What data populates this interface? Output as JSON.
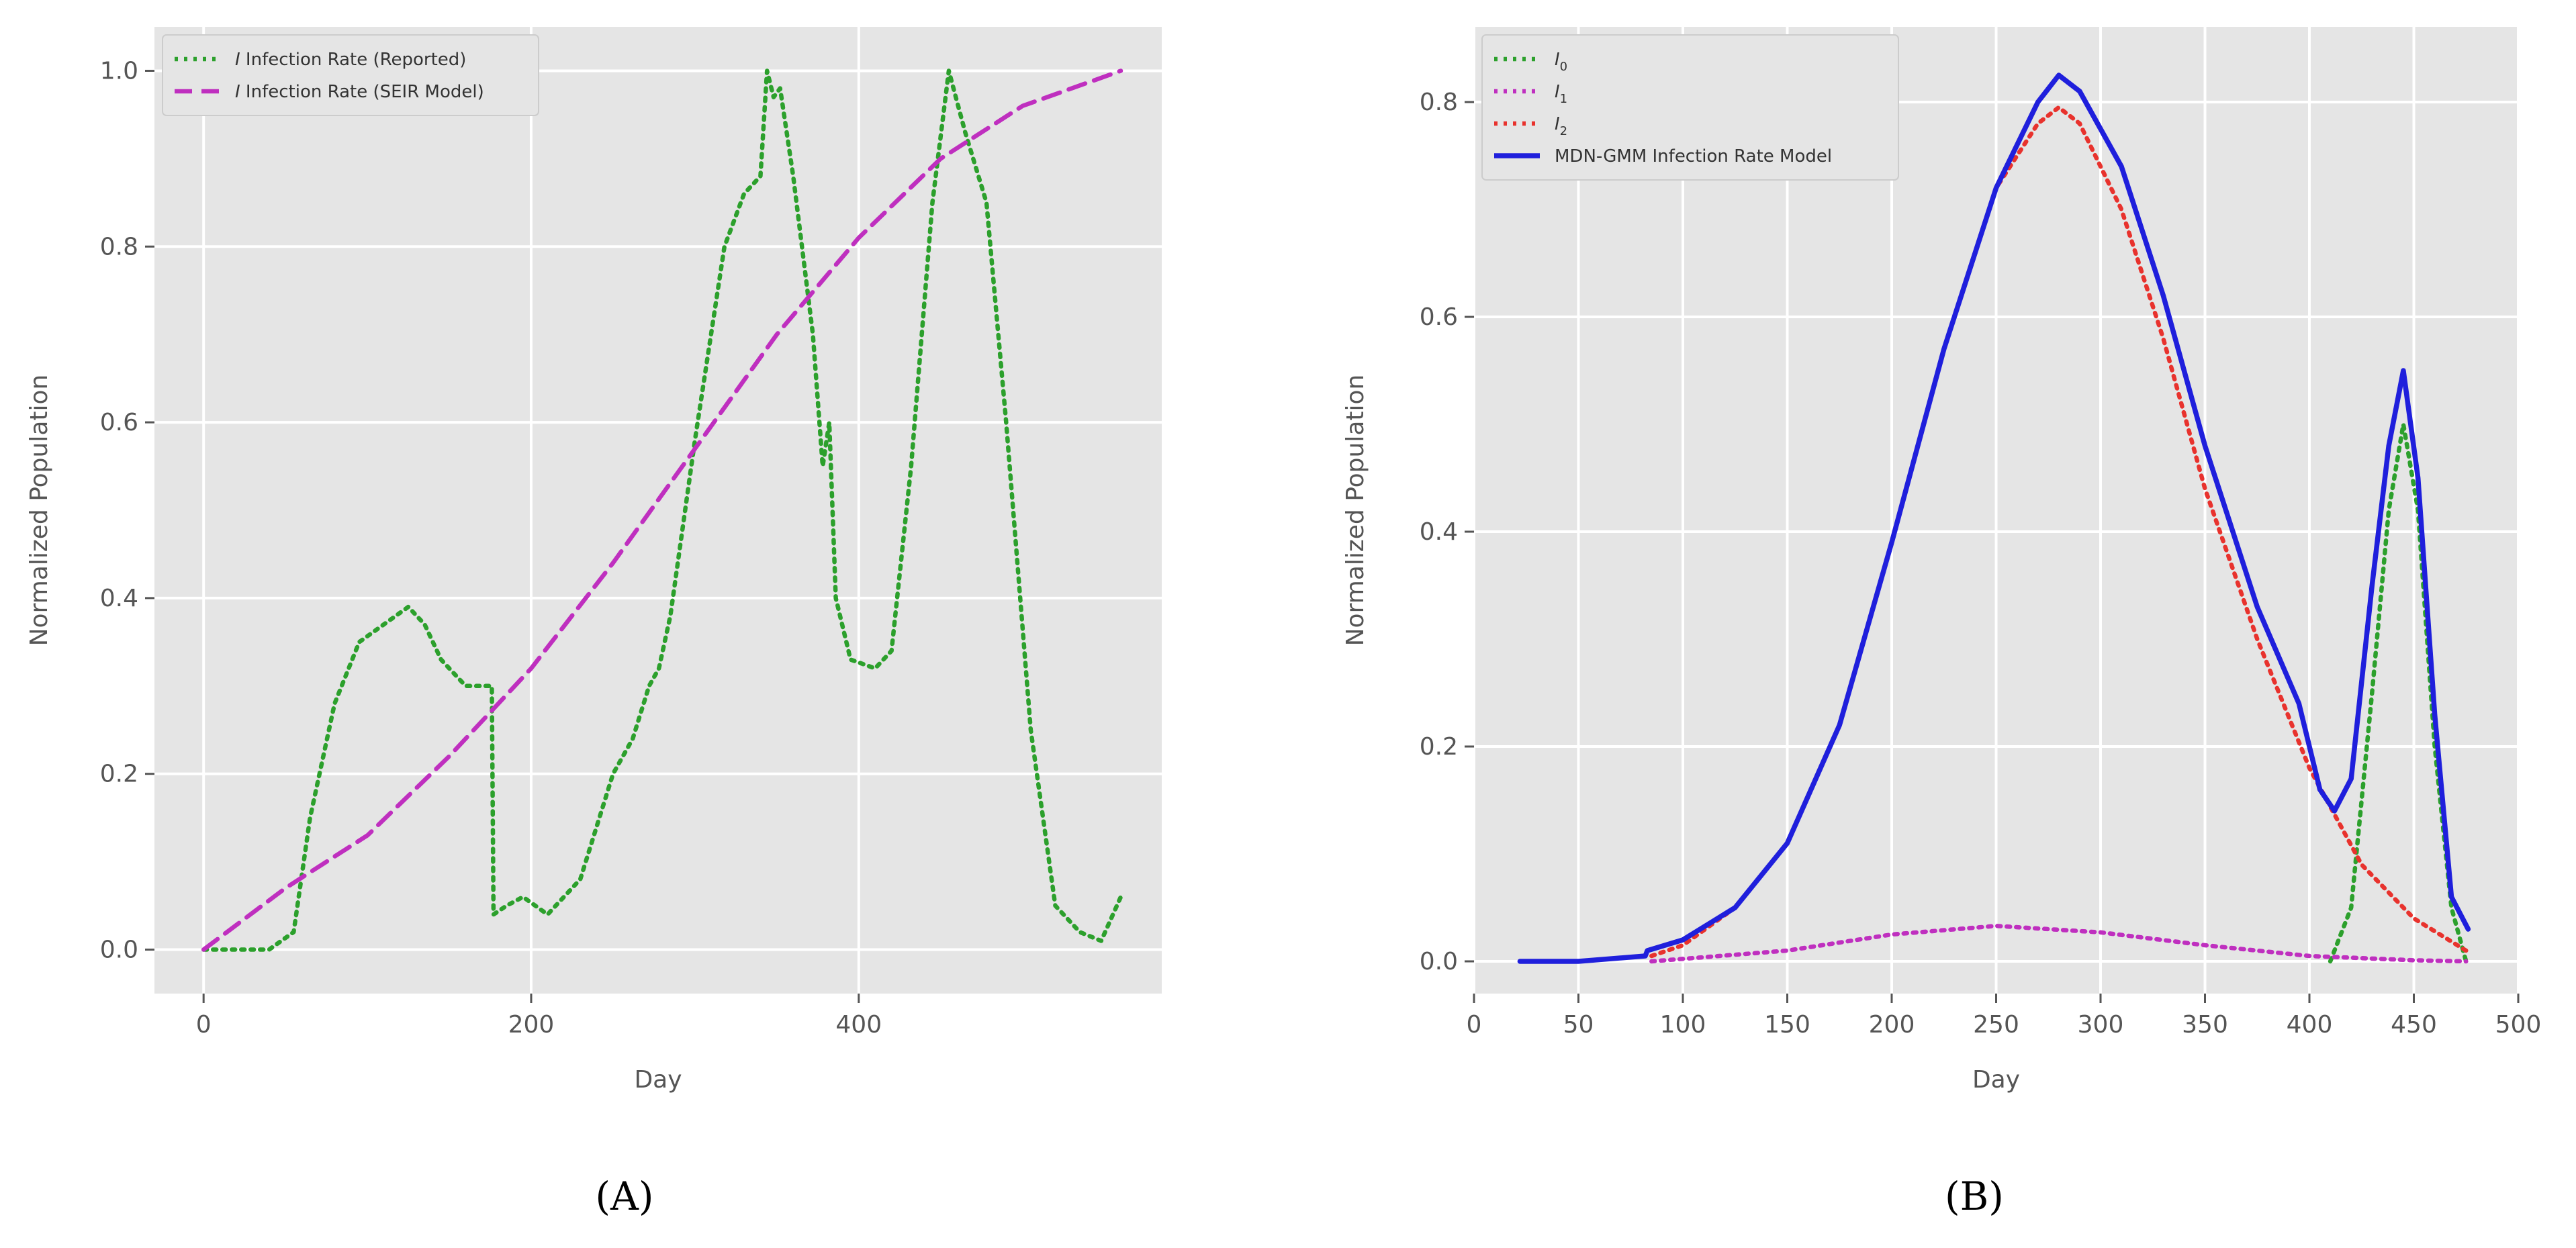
{
  "chart_data": [
    {
      "type": "line",
      "panel_label": "(A)",
      "xlabel": "Day",
      "ylabel": "Normalized Population",
      "xlim": [
        -30,
        585
      ],
      "ylim": [
        -0.05,
        1.05
      ],
      "xticks": [
        "0",
        "200",
        "400"
      ],
      "xtick_values": [
        0,
        200,
        400
      ],
      "yticks": [
        "0.0",
        "0.2",
        "0.4",
        "0.6",
        "0.8",
        "1.0"
      ],
      "ytick_values": [
        0.0,
        0.2,
        0.4,
        0.6,
        0.8,
        1.0
      ],
      "grid": true,
      "legend_position": "top-left",
      "series": [
        {
          "name": "I Infection Rate (Reported)",
          "legend_italic": "I",
          "legend_rest": " Infection Rate (Reported)",
          "color": "#2ca02c",
          "style": "dotted",
          "x": [
            0,
            20,
            40,
            55,
            65,
            80,
            95,
            110,
            125,
            135,
            145,
            160,
            176,
            177,
            185,
            195,
            210,
            230,
            250,
            262,
            272,
            278,
            285,
            300,
            318,
            330,
            340,
            344,
            348,
            352,
            360,
            372,
            378,
            382,
            386,
            395,
            410,
            420,
            432,
            445,
            455,
            465,
            478,
            490,
            505,
            520,
            535,
            548,
            560
          ],
          "y": [
            0.0,
            0.0,
            0.0,
            0.02,
            0.15,
            0.28,
            0.35,
            0.37,
            0.39,
            0.37,
            0.33,
            0.3,
            0.3,
            0.04,
            0.05,
            0.06,
            0.04,
            0.08,
            0.2,
            0.24,
            0.3,
            0.32,
            0.38,
            0.58,
            0.8,
            0.86,
            0.88,
            1.0,
            0.97,
            0.98,
            0.88,
            0.7,
            0.55,
            0.6,
            0.4,
            0.33,
            0.32,
            0.34,
            0.55,
            0.85,
            1.0,
            0.93,
            0.85,
            0.6,
            0.25,
            0.05,
            0.02,
            0.01,
            0.06
          ]
        },
        {
          "name": "I Infection Rate (SEIR Model)",
          "legend_italic": "I",
          "legend_rest": " Infection Rate (SEIR Model)",
          "color": "#bf2fbf",
          "style": "dashed",
          "x": [
            0,
            50,
            100,
            150,
            200,
            250,
            300,
            350,
            400,
            450,
            500,
            560
          ],
          "y": [
            0.0,
            0.07,
            0.13,
            0.22,
            0.32,
            0.44,
            0.57,
            0.7,
            0.81,
            0.9,
            0.96,
            1.0
          ]
        }
      ]
    },
    {
      "type": "line",
      "panel_label": "(B)",
      "xlabel": "Day",
      "ylabel": "Normalized Population",
      "xlim": [
        0,
        500
      ],
      "ylim": [
        -0.03,
        0.87
      ],
      "xticks": [
        "0",
        "50",
        "100",
        "150",
        "200",
        "250",
        "300",
        "350",
        "400",
        "450",
        "500"
      ],
      "xtick_values": [
        0,
        50,
        100,
        150,
        200,
        250,
        300,
        350,
        400,
        450,
        500
      ],
      "yticks": [
        "0.0",
        "0.2",
        "0.4",
        "0.6",
        "0.8"
      ],
      "ytick_values": [
        0.0,
        0.2,
        0.4,
        0.6,
        0.8
      ],
      "grid": true,
      "legend_position": "top-left",
      "series": [
        {
          "name": "I0",
          "legend_italic": "I",
          "legend_sub": "0",
          "color": "#2ca02c",
          "style": "dotted",
          "x": [
            410,
            420,
            430,
            438,
            445,
            452,
            460,
            468,
            475
          ],
          "y": [
            0.0,
            0.05,
            0.25,
            0.42,
            0.5,
            0.42,
            0.2,
            0.05,
            0.0
          ]
        },
        {
          "name": "I1",
          "legend_italic": "I",
          "legend_sub": "1",
          "color": "#bf2fbf",
          "style": "dotted",
          "x": [
            85,
            150,
            200,
            250,
            300,
            350,
            400,
            450,
            475
          ],
          "y": [
            0.0,
            0.01,
            0.025,
            0.033,
            0.027,
            0.015,
            0.005,
            0.001,
            0.0
          ]
        },
        {
          "name": "I2",
          "legend_italic": "I",
          "legend_sub": "2",
          "color": "#e8322d",
          "style": "dotted",
          "x": [
            85,
            100,
            125,
            150,
            175,
            200,
            225,
            250,
            270,
            280,
            290,
            310,
            330,
            350,
            375,
            400,
            425,
            450,
            475
          ],
          "y": [
            0.005,
            0.015,
            0.05,
            0.11,
            0.22,
            0.39,
            0.57,
            0.72,
            0.78,
            0.795,
            0.78,
            0.7,
            0.58,
            0.44,
            0.3,
            0.18,
            0.09,
            0.04,
            0.01
          ]
        },
        {
          "name": "MDN-GMM Infection Rate Model",
          "legend_rest": "MDN-GMM Infection Rate Model",
          "color": "#1f1fdc",
          "style": "solid",
          "x": [
            22,
            50,
            82,
            83,
            100,
            125,
            150,
            175,
            200,
            225,
            250,
            270,
            280,
            290,
            310,
            330,
            350,
            375,
            395,
            405,
            412,
            420,
            430,
            438,
            445,
            452,
            460,
            468,
            476
          ],
          "y": [
            0.0,
            0.0,
            0.005,
            0.01,
            0.02,
            0.05,
            0.11,
            0.22,
            0.39,
            0.57,
            0.72,
            0.8,
            0.825,
            0.81,
            0.74,
            0.62,
            0.48,
            0.33,
            0.24,
            0.16,
            0.14,
            0.17,
            0.35,
            0.48,
            0.55,
            0.45,
            0.23,
            0.06,
            0.03
          ]
        }
      ]
    }
  ]
}
